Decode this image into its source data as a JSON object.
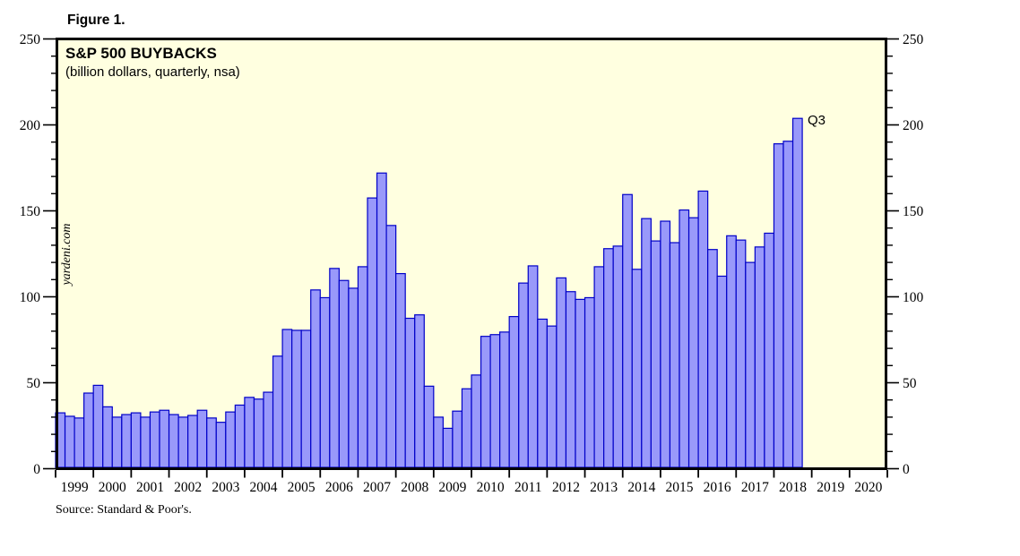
{
  "figure_label": "Figure 1.",
  "header": {
    "title": "S&P 500 BUYBACKS",
    "subtitle": "(billion dollars, quarterly, nsa)"
  },
  "watermark": "yardeni.com",
  "last_point_label": "Q3",
  "source": "Source: Standard & Poor's.",
  "colors": {
    "plot_background": "#ffffe0",
    "bar_fill": "#9999fa",
    "bar_stroke": "#0000c8",
    "frame": "#000000",
    "annotation_blue": "#0000dd"
  },
  "chart_data": {
    "type": "bar",
    "title": "S&P 500 BUYBACKS",
    "subtitle": "(billion dollars, quarterly, nsa)",
    "ylabel": "billion dollars",
    "ylim": [
      0,
      250
    ],
    "y_major_ticks": [
      0,
      50,
      100,
      150,
      200,
      250
    ],
    "y_minor_step": 10,
    "grid": false,
    "axis_labels_both_sides": true,
    "x_years": [
      1999,
      2000,
      2001,
      2002,
      2003,
      2004,
      2005,
      2006,
      2007,
      2008,
      2009,
      2010,
      2011,
      2012,
      2013,
      2014,
      2015,
      2016,
      2017,
      2018,
      2019,
      2020
    ],
    "series": [
      {
        "name": "S&P 500 buybacks (billion dollars, quarterly, nsa)",
        "quarterly": [
          {
            "year": 1999,
            "values": [
              32.5,
              30.5,
              29.5,
              44.0
            ]
          },
          {
            "year": 2000,
            "values": [
              48.5,
              36.0,
              30.0,
              31.5
            ]
          },
          {
            "year": 2001,
            "values": [
              32.5,
              30.0,
              33.0,
              34.0
            ]
          },
          {
            "year": 2002,
            "values": [
              31.5,
              30.0,
              31.0,
              34.0
            ]
          },
          {
            "year": 2003,
            "values": [
              29.5,
              27.0,
              33.0,
              37.0
            ]
          },
          {
            "year": 2004,
            "values": [
              41.5,
              40.5,
              44.5,
              65.5
            ]
          },
          {
            "year": 2005,
            "values": [
              81.0,
              80.5,
              80.5,
              104.0
            ]
          },
          {
            "year": 2006,
            "values": [
              99.5,
              116.5,
              109.5,
              105.0
            ]
          },
          {
            "year": 2007,
            "values": [
              117.5,
              157.5,
              172.0,
              141.5
            ]
          },
          {
            "year": 2008,
            "values": [
              113.5,
              87.5,
              89.5,
              48.0
            ]
          },
          {
            "year": 2009,
            "values": [
              30.0,
              23.5,
              33.5,
              46.5
            ]
          },
          {
            "year": 2010,
            "values": [
              54.5,
              77.0,
              78.0,
              79.5
            ]
          },
          {
            "year": 2011,
            "values": [
              88.5,
              108.0,
              118.0,
              87.0
            ]
          },
          {
            "year": 2012,
            "values": [
              83.0,
              111.0,
              103.0,
              98.5
            ]
          },
          {
            "year": 2013,
            "values": [
              99.5,
              117.5,
              128.0,
              129.5
            ]
          },
          {
            "year": 2014,
            "values": [
              159.5,
              116.0,
              145.5,
              132.5
            ]
          },
          {
            "year": 2015,
            "values": [
              144.0,
              131.5,
              150.5,
              146.0
            ]
          },
          {
            "year": 2016,
            "values": [
              161.5,
              127.5,
              112.0,
              135.5
            ]
          },
          {
            "year": 2017,
            "values": [
              133.0,
              120.0,
              129.0,
              137.0
            ]
          },
          {
            "year": 2018,
            "values": [
              189.0,
              190.5,
              203.8
            ]
          }
        ],
        "last_point": {
          "year": 2018,
          "quarter": "Q3",
          "value": 203.8
        }
      }
    ]
  }
}
